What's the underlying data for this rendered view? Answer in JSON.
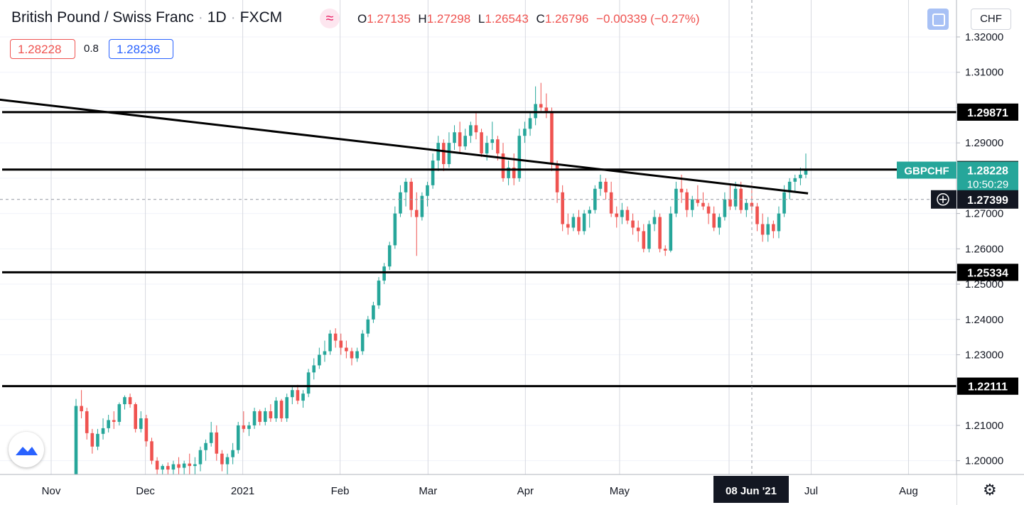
{
  "header": {
    "symbol_name": "British Pound / Swiss Franc",
    "interval": "1D",
    "exchange": "FXCM",
    "indicator_icon": "approx-wave-icon",
    "ohlc": {
      "open_label": "O",
      "open": "1.27135",
      "high_label": "H",
      "high": "1.27298",
      "low_label": "L",
      "low": "1.26543",
      "close_label": "C",
      "close": "1.26796",
      "change": "−0.00339 (−0.27%)"
    }
  },
  "quotes": {
    "sell": "1.28228",
    "spread": "0.8",
    "buy": "1.28236"
  },
  "currency_button": "CHF",
  "fullscreen_icon": "fullscreen-icon",
  "settings_icon": "gear-icon",
  "crosshair": {
    "date_label": "08 Jun '21",
    "price": "1.27399"
  },
  "chart_data": {
    "type": "candlestick",
    "title": "British Pound / Swiss Franc · 1D · FXCM",
    "y_range": [
      1.1962,
      1.3287
    ],
    "y_ticks": [
      1.2,
      1.21,
      1.23,
      1.24,
      1.25,
      1.26,
      1.27,
      1.28,
      1.29,
      1.3,
      1.31,
      1.32
    ],
    "y_tick_labels": [
      "1.20000",
      "1.21000",
      "1.23000",
      "1.24000",
      "1.25000",
      "1.26000",
      "1.27000",
      "1.28000",
      "1.29000",
      "1.30000",
      "1.31000",
      "1.32000"
    ],
    "x_labels": [
      {
        "label": "Nov",
        "date": "2020-11-01"
      },
      {
        "label": "Dec",
        "date": "2020-12-01"
      },
      {
        "label": "2021",
        "date": "2021-01-01"
      },
      {
        "label": "Feb",
        "date": "2021-02-01"
      },
      {
        "label": "Mar",
        "date": "2021-03-01"
      },
      {
        "label": "Apr",
        "date": "2021-04-01"
      },
      {
        "label": "May",
        "date": "2021-05-01"
      },
      {
        "label": "Jul",
        "date": "2021-07-01"
      },
      {
        "label": "Aug",
        "date": "2021-08-01"
      }
    ],
    "horizontal_levels": [
      1.29871,
      1.28244,
      1.25334,
      1.22111
    ],
    "trendline": {
      "from": {
        "date": "2020-10-15",
        "price": 1.3023
      },
      "to": {
        "date": "2021-06-30",
        "price": 1.2757
      }
    },
    "last_price": {
      "symbol": "GBPCHF",
      "price": "1.28228",
      "countdown": "10:50:29"
    },
    "up_color": "#26a69a",
    "down_color": "#ef5350",
    "candles_ohlc": [
      [
        1.1962,
        1.2175,
        1.1962,
        1.2155
      ],
      [
        1.2155,
        1.22,
        1.212,
        1.214
      ],
      [
        1.214,
        1.215,
        1.206,
        1.2078
      ],
      [
        1.2078,
        1.209,
        1.202,
        1.204
      ],
      [
        1.204,
        1.209,
        1.203,
        1.2076
      ],
      [
        1.2076,
        1.212,
        1.206,
        1.2092
      ],
      [
        1.2092,
        1.213,
        1.208,
        1.2115
      ],
      [
        1.2115,
        1.214,
        1.209,
        1.211
      ],
      [
        1.211,
        1.2165,
        1.21,
        1.216
      ],
      [
        1.216,
        1.2185,
        1.2145,
        1.218
      ],
      [
        1.218,
        1.219,
        1.215,
        1.216
      ],
      [
        1.216,
        1.2165,
        1.208,
        1.209
      ],
      [
        1.209,
        1.214,
        1.208,
        1.212
      ],
      [
        1.212,
        1.213,
        1.204,
        1.2055
      ],
      [
        1.2055,
        1.2065,
        1.199,
        1.2
      ],
      [
        1.2,
        1.201,
        1.1962,
        1.1975
      ],
      [
        1.1975,
        1.199,
        1.1962,
        1.1985
      ],
      [
        1.1985,
        1.1995,
        1.1962,
        1.1975
      ],
      [
        1.1975,
        1.2,
        1.1962,
        1.199
      ],
      [
        1.199,
        1.201,
        1.1962,
        1.198
      ],
      [
        1.198,
        1.2,
        1.1962,
        1.1992
      ],
      [
        1.1992,
        1.202,
        1.1962,
        1.1985
      ],
      [
        1.1985,
        1.201,
        1.1962,
        1.199
      ],
      [
        1.199,
        1.204,
        1.197,
        1.203
      ],
      [
        1.203,
        1.206,
        1.2,
        1.205
      ],
      [
        1.205,
        1.211,
        1.204,
        1.208
      ],
      [
        1.208,
        1.21,
        1.2,
        1.202
      ],
      [
        1.202,
        1.203,
        1.197,
        1.199
      ],
      [
        1.199,
        1.202,
        1.1962,
        1.201
      ],
      [
        1.201,
        1.205,
        1.199,
        1.203
      ],
      [
        1.203,
        1.211,
        1.202,
        1.21
      ],
      [
        1.21,
        1.214,
        1.208,
        1.209
      ],
      [
        1.209,
        1.211,
        1.207,
        1.21
      ],
      [
        1.21,
        1.215,
        1.209,
        1.214
      ],
      [
        1.214,
        1.2145,
        1.21,
        1.211
      ],
      [
        1.211,
        1.215,
        1.21,
        1.214
      ],
      [
        1.214,
        1.216,
        1.211,
        1.212
      ],
      [
        1.212,
        1.218,
        1.211,
        1.217
      ],
      [
        1.217,
        1.2175,
        1.211,
        1.212
      ],
      [
        1.212,
        1.219,
        1.211,
        1.218
      ],
      [
        1.218,
        1.221,
        1.216,
        1.22
      ],
      [
        1.22,
        1.2215,
        1.216,
        1.217
      ],
      [
        1.217,
        1.22,
        1.215,
        1.219
      ],
      [
        1.219,
        1.226,
        1.218,
        1.225
      ],
      [
        1.225,
        1.229,
        1.223,
        1.227
      ],
      [
        1.227,
        1.232,
        1.226,
        1.23
      ],
      [
        1.23,
        1.234,
        1.228,
        1.231
      ],
      [
        1.231,
        1.237,
        1.23,
        1.236
      ],
      [
        1.236,
        1.2375,
        1.232,
        1.234
      ],
      [
        1.234,
        1.236,
        1.23,
        1.232
      ],
      [
        1.232,
        1.234,
        1.229,
        1.231
      ],
      [
        1.231,
        1.232,
        1.227,
        1.229
      ],
      [
        1.229,
        1.232,
        1.228,
        1.231
      ],
      [
        1.231,
        1.237,
        1.23,
        1.236
      ],
      [
        1.236,
        1.241,
        1.235,
        1.24
      ],
      [
        1.24,
        1.245,
        1.239,
        1.244
      ],
      [
        1.244,
        1.252,
        1.243,
        1.251
      ],
      [
        1.251,
        1.256,
        1.25,
        1.255
      ],
      [
        1.255,
        1.262,
        1.254,
        1.261
      ],
      [
        1.261,
        1.272,
        1.26,
        1.27
      ],
      [
        1.27,
        1.278,
        1.269,
        1.276
      ],
      [
        1.276,
        1.28,
        1.272,
        1.279
      ],
      [
        1.279,
        1.28,
        1.269,
        1.271
      ],
      [
        1.271,
        1.276,
        1.258,
        1.269
      ],
      [
        1.269,
        1.276,
        1.268,
        1.275
      ],
      [
        1.275,
        1.279,
        1.272,
        1.278
      ],
      [
        1.278,
        1.287,
        1.277,
        1.285
      ],
      [
        1.285,
        1.292,
        1.282,
        1.29
      ],
      [
        1.29,
        1.291,
        1.282,
        1.284
      ],
      [
        1.284,
        1.293,
        1.283,
        1.29
      ],
      [
        1.29,
        1.295,
        1.288,
        1.293
      ],
      [
        1.293,
        1.296,
        1.287,
        1.289
      ],
      [
        1.289,
        1.294,
        1.288,
        1.292
      ],
      [
        1.292,
        1.296,
        1.29,
        1.295
      ],
      [
        1.295,
        1.299,
        1.291,
        1.293
      ],
      [
        1.293,
        1.294,
        1.286,
        1.287
      ],
      [
        1.287,
        1.292,
        1.285,
        1.29
      ],
      [
        1.29,
        1.296,
        1.288,
        1.291
      ],
      [
        1.291,
        1.292,
        1.285,
        1.287
      ],
      [
        1.287,
        1.29,
        1.279,
        1.28
      ],
      [
        1.28,
        1.285,
        1.278,
        1.283
      ],
      [
        1.283,
        1.287,
        1.278,
        1.28
      ],
      [
        1.28,
        1.294,
        1.279,
        1.292
      ],
      [
        1.292,
        1.296,
        1.29,
        1.294
      ],
      [
        1.294,
        1.299,
        1.292,
        1.297
      ],
      [
        1.297,
        1.306,
        1.295,
        1.301
      ],
      [
        1.301,
        1.307,
        1.299,
        1.3
      ],
      [
        1.3,
        1.304,
        1.297,
        1.299
      ],
      [
        1.299,
        1.3,
        1.282,
        1.284
      ],
      [
        1.284,
        1.285,
        1.273,
        1.276
      ],
      [
        1.276,
        1.278,
        1.265,
        1.267
      ],
      [
        1.267,
        1.27,
        1.264,
        1.266
      ],
      [
        1.266,
        1.27,
        1.265,
        1.269
      ],
      [
        1.269,
        1.271,
        1.264,
        1.265
      ],
      [
        1.265,
        1.271,
        1.264,
        1.27
      ],
      [
        1.27,
        1.272,
        1.266,
        1.271
      ],
      [
        1.271,
        1.278,
        1.27,
        1.277
      ],
      [
        1.277,
        1.281,
        1.275,
        1.279
      ],
      [
        1.279,
        1.28,
        1.274,
        1.276
      ],
      [
        1.276,
        1.279,
        1.269,
        1.27
      ],
      [
        1.27,
        1.272,
        1.266,
        1.269
      ],
      [
        1.269,
        1.273,
        1.267,
        1.271
      ],
      [
        1.271,
        1.272,
        1.267,
        1.268
      ],
      [
        1.268,
        1.27,
        1.264,
        1.266
      ],
      [
        1.266,
        1.268,
        1.262,
        1.265
      ],
      [
        1.265,
        1.267,
        1.259,
        1.26
      ],
      [
        1.26,
        1.268,
        1.259,
        1.267
      ],
      [
        1.267,
        1.271,
        1.265,
        1.269
      ],
      [
        1.269,
        1.27,
        1.259,
        1.26
      ],
      [
        1.26,
        1.261,
        1.258,
        1.2595
      ],
      [
        1.2595,
        1.272,
        1.259,
        1.27
      ],
      [
        1.27,
        1.279,
        1.269,
        1.277
      ],
      [
        1.277,
        1.281,
        1.273,
        1.276
      ],
      [
        1.276,
        1.277,
        1.269,
        1.271
      ],
      [
        1.271,
        1.275,
        1.269,
        1.274
      ],
      [
        1.274,
        1.278,
        1.272,
        1.273
      ],
      [
        1.273,
        1.276,
        1.271,
        1.272
      ],
      [
        1.272,
        1.273,
        1.267,
        1.27
      ],
      [
        1.27,
        1.272,
        1.265,
        1.266
      ],
      [
        1.266,
        1.27,
        1.264,
        1.269
      ],
      [
        1.269,
        1.276,
        1.268,
        1.274
      ],
      [
        1.274,
        1.278,
        1.271,
        1.272
      ],
      [
        1.272,
        1.279,
        1.271,
        1.277
      ],
      [
        1.277,
        1.279,
        1.27,
        1.271
      ],
      [
        1.271,
        1.274,
        1.269,
        1.273
      ],
      [
        1.273,
        1.278,
        1.27,
        1.272
      ],
      [
        1.272,
        1.273,
        1.265,
        1.267
      ],
      [
        1.267,
        1.27,
        1.262,
        1.264
      ],
      [
        1.264,
        1.269,
        1.262,
        1.267
      ],
      [
        1.267,
        1.268,
        1.263,
        1.265
      ],
      [
        1.265,
        1.272,
        1.263,
        1.27
      ],
      [
        1.27,
        1.278,
        1.269,
        1.276
      ],
      [
        1.276,
        1.28,
        1.274,
        1.279
      ],
      [
        1.279,
        1.281,
        1.276,
        1.28
      ],
      [
        1.28,
        1.283,
        1.278,
        1.281
      ],
      [
        1.281,
        1.287,
        1.28,
        1.2823
      ]
    ]
  }
}
